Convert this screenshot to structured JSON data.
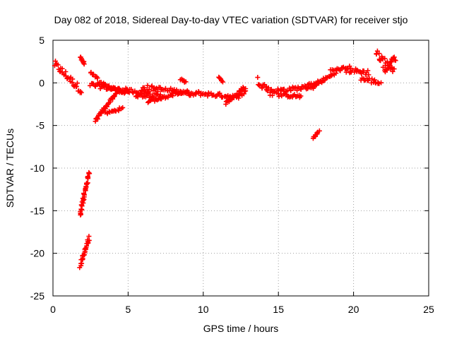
{
  "chart_data": {
    "type": "scatter",
    "title": "Day 082 of 2018, Sidereal Day-to-day VTEC variation (SDTVAR) for receiver stjo",
    "xlabel": "GPS time / hours",
    "ylabel": "SDTVAR / TECUs",
    "xlim": [
      0,
      25
    ],
    "ylim": [
      -25,
      5
    ],
    "xticks": [
      0,
      5,
      10,
      15,
      20,
      25
    ],
    "yticks": [
      5,
      0,
      -5,
      -10,
      -15,
      -20,
      -25
    ],
    "xtick_labels": [
      "0",
      "5",
      "10",
      "15",
      "20",
      "25"
    ],
    "ytick_labels": [
      "5",
      "0",
      "-5",
      "-10",
      "-15",
      "-20",
      "-25"
    ],
    "grid": true,
    "marker": "plus",
    "color": "#ff0000",
    "series": [
      {
        "name": "SDTVAR",
        "segments": [
          {
            "x": [
              0.1,
              1.9
            ],
            "y": [
              2.2,
              -0.9
            ],
            "noise": 0.9
          },
          {
            "x": [
              1.8,
              2.1
            ],
            "y": [
              3.0,
              2.2
            ],
            "noise": 0.4
          },
          {
            "x": [
              2.5,
              3.0
            ],
            "y": [
              1.2,
              0.4
            ],
            "noise": 0.4
          },
          {
            "x": [
              2.5,
              4.8
            ],
            "y": [
              -0.2,
              -1.0
            ],
            "noise": 0.5
          },
          {
            "x": [
              3.0,
              5.0
            ],
            "y": [
              0.0,
              -1.2
            ],
            "noise": 0.4
          },
          {
            "x": [
              2.8,
              4.2
            ],
            "y": [
              -4.5,
              -1.2
            ],
            "noise": 0.4
          },
          {
            "x": [
              3.5,
              4.6
            ],
            "y": [
              -3.6,
              -3.0
            ],
            "noise": 0.3
          },
          {
            "x": [
              4.0,
              6.5
            ],
            "y": [
              -0.7,
              -1.2
            ],
            "noise": 0.5
          },
          {
            "x": [
              6.0,
              9.0
            ],
            "y": [
              -0.5,
              -1.2
            ],
            "noise": 0.6
          },
          {
            "x": [
              5.5,
              8.0
            ],
            "y": [
              -1.4,
              -1.6
            ],
            "noise": 0.5
          },
          {
            "x": [
              6.3,
              7.2
            ],
            "y": [
              -2.2,
              -1.8
            ],
            "noise": 0.3
          },
          {
            "x": [
              8.0,
              9.5
            ],
            "y": [
              -1.0,
              -1.4
            ],
            "noise": 0.4
          },
          {
            "x": [
              8.5,
              8.8
            ],
            "y": [
              0.4,
              0.1
            ],
            "noise": 0.2
          },
          {
            "x": [
              9.5,
              12.0
            ],
            "y": [
              -1.2,
              -1.6
            ],
            "noise": 0.5
          },
          {
            "x": [
              11.0,
              11.3
            ],
            "y": [
              0.6,
              0.2
            ],
            "noise": 0.2
          },
          {
            "x": [
              11.5,
              12.8
            ],
            "y": [
              -2.4,
              -0.5
            ],
            "noise": 0.4
          },
          {
            "x": [
              12.2,
              12.8
            ],
            "y": [
              -1.8,
              -1.0
            ],
            "noise": 0.4
          },
          {
            "x": [
              13.6,
              14.6
            ],
            "y": [
              0.3,
              -1.2
            ],
            "noise": 0.9
          },
          {
            "x": [
              14.5,
              17.5
            ],
            "y": [
              -1.0,
              -0.4
            ],
            "noise": 0.5
          },
          {
            "x": [
              15.0,
              16.5
            ],
            "y": [
              -1.4,
              -1.6
            ],
            "noise": 0.4
          },
          {
            "x": [
              17.0,
              18.0
            ],
            "y": [
              -0.3,
              0.2
            ],
            "noise": 0.4
          },
          {
            "x": [
              17.3,
              17.7
            ],
            "y": [
              -6.5,
              -5.7
            ],
            "noise": 0.2
          },
          {
            "x": [
              17.5,
              18.8
            ],
            "y": [
              -0.2,
              1.2
            ],
            "noise": 0.4
          },
          {
            "x": [
              18.5,
              19.8
            ],
            "y": [
              1.4,
              1.8
            ],
            "noise": 0.4
          },
          {
            "x": [
              19.5,
              21.0
            ],
            "y": [
              1.5,
              1.2
            ],
            "noise": 0.6
          },
          {
            "x": [
              20.5,
              21.8
            ],
            "y": [
              0.5,
              0.0
            ],
            "noise": 0.6
          },
          {
            "x": [
              21.5,
              22.7
            ],
            "y": [
              3.5,
              1.5
            ],
            "noise": 0.9
          },
          {
            "x": [
              22.0,
              22.8
            ],
            "y": [
              1.5,
              3.0
            ],
            "noise": 0.8
          },
          {
            "x": [
              1.8,
              2.4
            ],
            "y": [
              -15.5,
              -10.6
            ],
            "noise": 0.5
          },
          {
            "x": [
              1.8,
              2.4
            ],
            "y": [
              -21.5,
              -18.2
            ],
            "noise": 0.5
          }
        ]
      }
    ]
  }
}
